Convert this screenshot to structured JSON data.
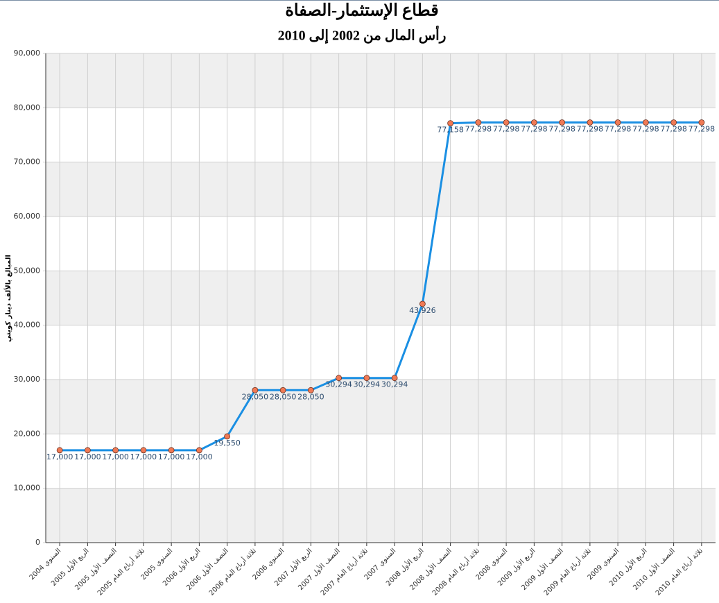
{
  "chart_data": {
    "type": "line",
    "title": "قطاع الإستثمار-الصفاة",
    "subtitle": "رأس المال من 2002 إلى 2010",
    "y_label": "المبالغ بالألف دينار كويتي",
    "categories": [
      "السنوي 2004",
      "الربع الأول 2005",
      "النصف الأول 2005",
      "ثلاثة أرباع العام 2005",
      "السنوي 2005",
      "الربع الأول 2006",
      "النصف الأول 2006",
      "ثلاثة أرباع العام 2006",
      "السنوي 2006",
      "الربع الأول 2007",
      "النصف الأول 2007",
      "ثلاثة أرباع العام 2007",
      "السنوي 2007",
      "الربع الأول 2008",
      "النصف الأول 2008",
      "ثلاثة أرباع العام 2008",
      "السنوي 2008",
      "الربع الأول 2009",
      "النصف الأول 2009",
      "ثلاثة أرباع العام 2009",
      "السنوي 2009",
      "الربع الأول 2010",
      "النصف الأول 2010",
      "ثلاثة أرباع العام 2010"
    ],
    "values": [
      17000,
      17000,
      17000,
      17000,
      17000,
      17000,
      19550,
      28050,
      28050,
      28050,
      30294,
      30294,
      30294,
      43926,
      77158,
      77298,
      77298,
      77298,
      77298,
      77298,
      77298,
      77298,
      77298,
      77298
    ],
    "value_labels": [
      "17,000",
      "17,000",
      "17,000",
      "17,000",
      "17,000",
      "17,000",
      "19,550",
      "28,050",
      "28,050",
      "28,050",
      "30,294",
      "30,294",
      "30,294",
      "43,926",
      "77,158",
      "77,298",
      "77,298",
      "77,298",
      "77,298",
      "77,298",
      "77,298",
      "77,298",
      "77,298",
      "77,298"
    ],
    "color": "#1a8fe3",
    "marker_color": "#f07a55",
    "ylim": [
      0,
      90000
    ],
    "yticks": [
      0,
      {
        "value": 10000,
        "label": "10,000"
      },
      {
        "value": 20000,
        "label": "20,000"
      },
      {
        "value": 30000,
        "label": "30,000"
      },
      {
        "value": 40000,
        "label": "40,000"
      },
      {
        "value": 50000,
        "label": "50,000"
      },
      {
        "value": 60000,
        "label": "60,000"
      },
      {
        "value": 70000,
        "label": "70,000"
      },
      {
        "value": 80000,
        "label": "80,000"
      },
      {
        "value": 90000,
        "label": "90,000"
      }
    ],
    "grid": true
  }
}
